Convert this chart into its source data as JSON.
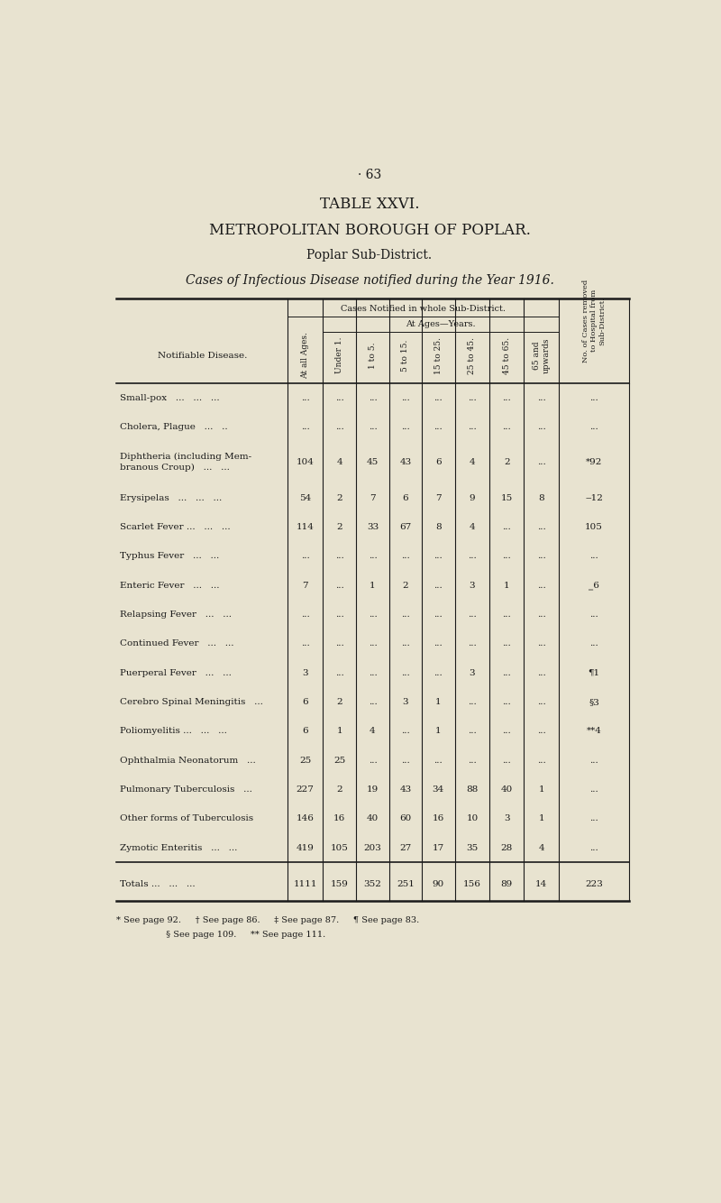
{
  "page_number": "· 63",
  "title1": "TABLE XXVI.",
  "title2": "METROPOLITAN BOROUGH OF POPLAR.",
  "title3": "Poplar Sub-District.",
  "title4": "Cases of Infectious Disease notified during the Year 1916.",
  "bg_color": "#e8e3d0",
  "text_color": "#1a1a1a",
  "col_header_main": "Cases Notified in whole Sub-District.",
  "col_header_ages": "At Ages—Years.",
  "col_header_hosp": "No. of Cases removed\nto Hospital from\nSub-District.",
  "row_label_col": "Notifiable Disease.",
  "col_all_ages": "At all Ages.",
  "age_cols": [
    "Under 1.",
    "1 to 5.",
    "5 to 15.",
    "15 to 25.",
    "25 to 45.",
    "45 to 65.",
    "65 and\nupwards"
  ],
  "rows": [
    {
      "disease": "Small-pox   ...   ...   ...",
      "two_line": false,
      "all_ages": "...",
      "u1": "...",
      "1to5": "...",
      "5to15": "...",
      "15to25": "...",
      "25to45": "...",
      "45to65": "...",
      "65up": "...",
      "hosp": "..."
    },
    {
      "disease": "Cholera, Plague   ...   ..",
      "two_line": false,
      "all_ages": "...",
      "u1": "...",
      "1to5": "...",
      "5to15": "...",
      "15to25": "...",
      "25to45": "...",
      "45to65": "...",
      "65up": "...",
      "hosp": "..."
    },
    {
      "disease": "Diphtheria (including Mem-\nbranous Croup)   ...   ...",
      "two_line": true,
      "all_ages": "104",
      "u1": "4",
      "1to5": "45",
      "5to15": "43",
      "15to25": "6",
      "25to45": "4",
      "45to65": "2",
      "65up": "...",
      "hosp": "*92"
    },
    {
      "disease": "Erysipelas   ...   ...   ...",
      "two_line": false,
      "all_ages": "54",
      "u1": "2",
      "1to5": "7",
      "5to15": "6",
      "15to25": "7",
      "25to45": "9",
      "45to65": "15",
      "65up": "8",
      "hosp": "‒12"
    },
    {
      "disease": "Scarlet Fever ...   ...   ...",
      "two_line": false,
      "all_ages": "114",
      "u1": "2",
      "1to5": "33",
      "5to15": "67",
      "15to25": "8",
      "25to45": "4",
      "45to65": "...",
      "65up": "...",
      "hosp": "105"
    },
    {
      "disease": "Typhus Fever   ...   ...",
      "two_line": false,
      "all_ages": "...",
      "u1": "...",
      "1to5": "...",
      "5to15": "...",
      "15to25": "...",
      "25to45": "...",
      "45to65": "...",
      "65up": "...",
      "hosp": "..."
    },
    {
      "disease": "Enteric Fever   ...   ...",
      "two_line": false,
      "all_ages": "7",
      "u1": "...",
      "1to5": "1",
      "5to15": "2",
      "15to25": "...",
      "25to45": "3",
      "45to65": "1",
      "65up": "...",
      "hosp": "‗6"
    },
    {
      "disease": "Relapsing Fever   ...   ...",
      "two_line": false,
      "all_ages": "...",
      "u1": "...",
      "1to5": "...",
      "5to15": "...",
      "15to25": "...",
      "25to45": "...",
      "45to65": "...",
      "65up": "...",
      "hosp": "..."
    },
    {
      "disease": "Continued Fever   ...   ...",
      "two_line": false,
      "all_ages": "...",
      "u1": "...",
      "1to5": "...",
      "5to15": "...",
      "15to25": "...",
      "25to45": "...",
      "45to65": "...",
      "65up": "...",
      "hosp": "..."
    },
    {
      "disease": "Puerperal Fever   ...   ...",
      "two_line": false,
      "all_ages": "3",
      "u1": "...",
      "1to5": "...",
      "5to15": "...",
      "15to25": "...",
      "25to45": "3",
      "45to65": "...",
      "65up": "...",
      "hosp": "¶1"
    },
    {
      "disease": "Cerebro Spinal Meningitis   ...",
      "two_line": false,
      "all_ages": "6",
      "u1": "2",
      "1to5": "...",
      "5to15": "3",
      "15to25": "1",
      "25to45": "...",
      "45to65": "...",
      "65up": "...",
      "hosp": "§3"
    },
    {
      "disease": "Poliomyelitis ...   ...   ...",
      "two_line": false,
      "all_ages": "6",
      "u1": "1",
      "1to5": "4",
      "5to15": "...",
      "15to25": "1",
      "25to45": "...",
      "45to65": "...",
      "65up": "...",
      "hosp": "**4"
    },
    {
      "disease": "Ophthalmia Neonatorum   ...",
      "two_line": false,
      "all_ages": "25",
      "u1": "25",
      "1to5": "...",
      "5to15": "...",
      "15to25": "...",
      "25to45": "...",
      "45to65": "...",
      "65up": "...",
      "hosp": "..."
    },
    {
      "disease": "Pulmonary Tuberculosis   ...",
      "two_line": false,
      "all_ages": "227",
      "u1": "2",
      "1to5": "19",
      "5to15": "43",
      "15to25": "34",
      "25to45": "88",
      "45to65": "40",
      "65up": "1",
      "hosp": "..."
    },
    {
      "disease": "Other forms of Tuberculosis",
      "two_line": false,
      "all_ages": "146",
      "u1": "16",
      "1to5": "40",
      "5to15": "60",
      "15to25": "16",
      "25to45": "10",
      "45to65": "3",
      "65up": "1",
      "hosp": "..."
    },
    {
      "disease": "Zymotic Enteritis   ...   ...",
      "two_line": false,
      "all_ages": "419",
      "u1": "105",
      "1to5": "203",
      "5to15": "27",
      "15to25": "17",
      "25to45": "35",
      "45to65": "28",
      "65up": "4",
      "hosp": "..."
    }
  ],
  "totals": {
    "label": "Totals ...   ...   ...",
    "all_ages": "1111",
    "u1": "159",
    "1to5": "352",
    "5to15": "251",
    "15to25": "90",
    "25to45": "156",
    "45to65": "89",
    "65up": "14",
    "hosp": "223"
  },
  "footnote1": "* See page 92.     † See page 86.     ‡ See page 87.     ¶ See page 83.",
  "footnote2": "          § See page 109.     ** See page 111."
}
